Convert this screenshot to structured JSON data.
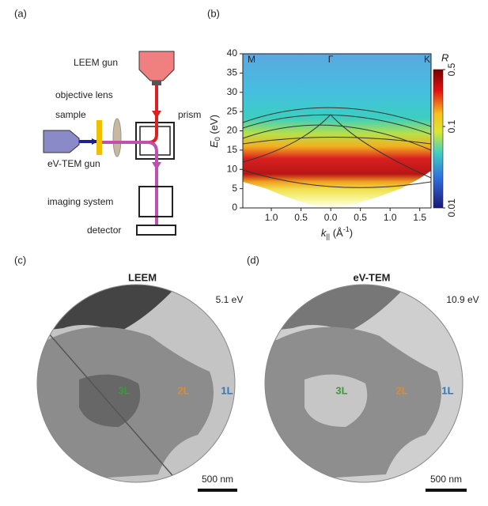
{
  "panel_a": {
    "label": "(a)",
    "leem_gun": "LEEM gun",
    "objective_lens": "objective lens",
    "sample": "sample",
    "prism": "prism",
    "ev_tem_gun": "eV-TEM gun",
    "imaging_system": "imaging system",
    "detector": "detector"
  },
  "panel_b": {
    "label": "(b)",
    "type": "heatmap",
    "ylabel": {
      "symbol": "E",
      "subscript": "0",
      "unit": " (eV)"
    },
    "xlabel": {
      "symbol": "k",
      "subscript": "||",
      "unit": " (Å",
      "exponent": "-1",
      "unit_end": ")"
    },
    "xlim": [
      -1.48,
      1.69
    ],
    "ylim": [
      0,
      40
    ],
    "yticks": [
      0,
      5,
      10,
      15,
      20,
      25,
      30,
      35,
      40
    ],
    "xticks": [
      {
        "value": -1,
        "label": "1.0"
      },
      {
        "value": -0.5,
        "label": "0.5"
      },
      {
        "value": 0,
        "label": "0.0"
      },
      {
        "value": 0.5,
        "label": "0.5"
      },
      {
        "value": 1,
        "label": "1.0"
      },
      {
        "value": 1.5,
        "label": "1.5"
      }
    ],
    "annotations": [
      "M",
      "Γ",
      "K"
    ],
    "colorbar": {
      "label": "R",
      "scale": "log",
      "lim": [
        0.01,
        0.5
      ],
      "ticks": [
        0.01,
        0.1,
        0.5
      ]
    }
  },
  "panel_c": {
    "label": "(c)",
    "title": "LEEM",
    "energy": "5.1 eV",
    "layers": [
      "3L",
      "2L",
      "1L"
    ],
    "scale_bar": "500 nm"
  },
  "panel_d": {
    "label": "(d)",
    "title": "eV-TEM",
    "energy": "10.9 eV",
    "layers": [
      "3L",
      "2L",
      "1L"
    ],
    "scale_bar": "500 nm"
  }
}
